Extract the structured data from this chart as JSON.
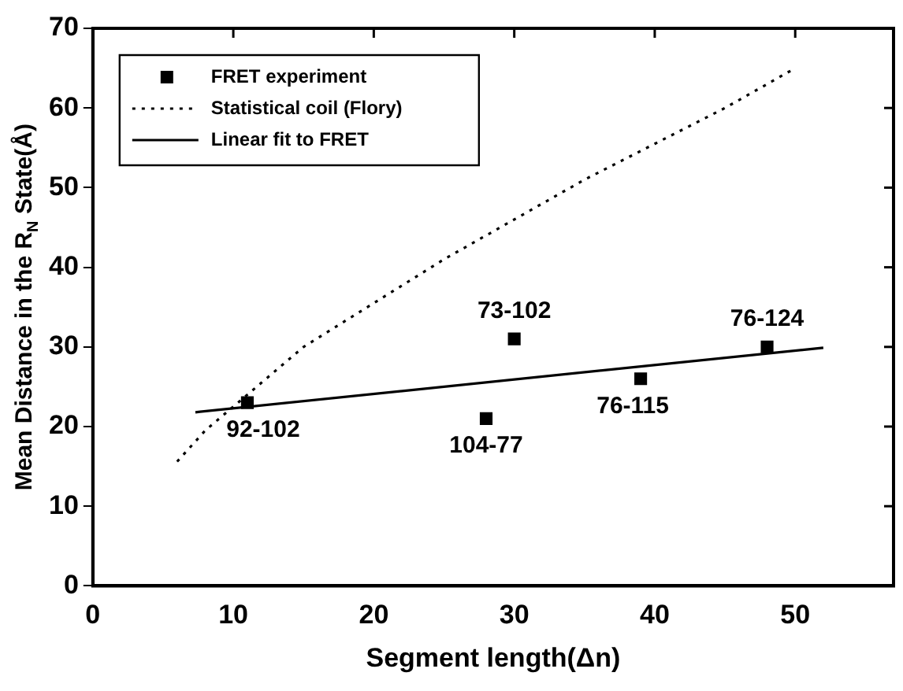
{
  "chart_data": {
    "type": "scatter",
    "xlabel": "Segment length(Δn)",
    "ylabel": "Mean Distance in the R$_{N}$ State(Å)",
    "xlim": [
      0,
      57
    ],
    "xticks": [
      0,
      10,
      20,
      30,
      40,
      50
    ],
    "ylim": [
      0,
      70
    ],
    "yticks": [
      0,
      10,
      20,
      30,
      40,
      50,
      60,
      70
    ],
    "grid": false,
    "legend": "top left",
    "series": [
      {
        "name": "FRET experiment",
        "type": "scatter",
        "marker": "square",
        "color": "#000000",
        "x": [
          11,
          28,
          30,
          39,
          48
        ],
        "values": [
          23,
          21,
          31,
          26,
          30
        ]
      },
      {
        "name": "Statistical coil (Flory)",
        "type": "line",
        "line_style": "dotted",
        "color": "#000000",
        "x": [
          6,
          8,
          10,
          12,
          15,
          20,
          25,
          30,
          35,
          40,
          45,
          50
        ],
        "values": [
          15.6,
          19.5,
          22.5,
          25.5,
          30,
          35.5,
          41,
          46,
          51,
          55.5,
          60,
          65
        ]
      },
      {
        "name": "Linear fit to FRET",
        "type": "line",
        "line_style": "solid",
        "color": "#000000",
        "x": [
          7.3,
          52
        ],
        "values": [
          21.8,
          29.9
        ]
      }
    ],
    "annotations": [
      {
        "text": "92-102",
        "x": 11,
        "y": 23
      },
      {
        "text": "104-77",
        "x": 28,
        "y": 21
      },
      {
        "text": "73-102",
        "x": 30,
        "y": 31
      },
      {
        "text": "76-115",
        "x": 39,
        "y": 26
      },
      {
        "text": "76-124",
        "x": 48,
        "y": 30
      }
    ]
  }
}
